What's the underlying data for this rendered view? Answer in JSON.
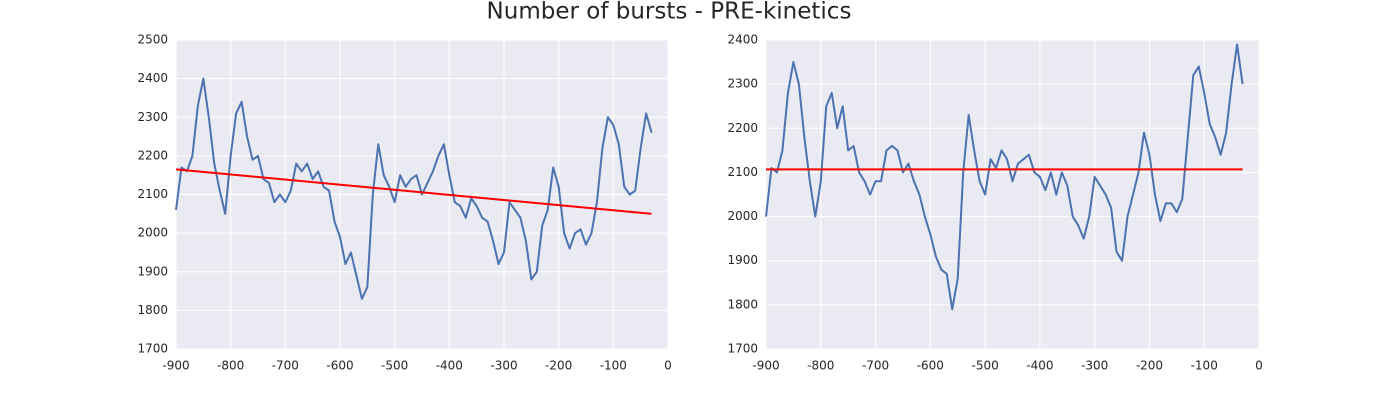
{
  "title": "Number of bursts - PRE-kinetics",
  "chart_data": [
    {
      "type": "line",
      "x": [
        -900,
        -890,
        -880,
        -870,
        -860,
        -850,
        -840,
        -830,
        -820,
        -810,
        -800,
        -790,
        -780,
        -770,
        -760,
        -750,
        -740,
        -730,
        -720,
        -710,
        -700,
        -690,
        -680,
        -670,
        -660,
        -650,
        -640,
        -630,
        -620,
        -610,
        -600,
        -590,
        -580,
        -570,
        -560,
        -550,
        -540,
        -530,
        -520,
        -510,
        -500,
        -490,
        -480,
        -470,
        -460,
        -450,
        -440,
        -430,
        -420,
        -410,
        -400,
        -390,
        -380,
        -370,
        -360,
        -350,
        -340,
        -330,
        -320,
        -310,
        -300,
        -290,
        -280,
        -270,
        -260,
        -250,
        -240,
        -230,
        -220,
        -210,
        -200,
        -190,
        -180,
        -170,
        -160,
        -150,
        -140,
        -130,
        -120,
        -110,
        -100,
        -90,
        -80,
        -70,
        -60,
        -50,
        -40,
        -30
      ],
      "series": [
        {
          "color": "#4c72b0",
          "values": [
            2060,
            2170,
            2160,
            2200,
            2330,
            2400,
            2300,
            2180,
            2110,
            2050,
            2200,
            2310,
            2340,
            2250,
            2190,
            2200,
            2140,
            2130,
            2080,
            2100,
            2080,
            2110,
            2180,
            2160,
            2180,
            2140,
            2160,
            2120,
            2110,
            2030,
            1990,
            1920,
            1950,
            1890,
            1830,
            1860,
            2100,
            2230,
            2150,
            2120,
            2080,
            2150,
            2120,
            2140,
            2150,
            2100,
            2130,
            2160,
            2200,
            2230,
            2150,
            2080,
            2070,
            2040,
            2090,
            2070,
            2040,
            2030,
            1980,
            1920,
            1950,
            2080,
            2060,
            2040,
            1980,
            1880,
            1900,
            2020,
            2060,
            2170,
            2120,
            2000,
            1960,
            2000,
            2010,
            1970,
            2000,
            2080,
            2220,
            2300,
            2280,
            2230,
            2120,
            2100,
            2110,
            2220,
            2310,
            2260
          ]
        },
        {
          "color": "#ff0000",
          "x": [
            -900,
            -30
          ],
          "values": [
            2165,
            2050
          ]
        }
      ],
      "xlim": [
        -900,
        0
      ],
      "xticks": [
        -900,
        -800,
        -700,
        -600,
        -500,
        -400,
        -300,
        -200,
        -100,
        0
      ],
      "ylim": [
        1700,
        2500
      ],
      "yticks": [
        1700,
        1800,
        1900,
        2000,
        2100,
        2200,
        2300,
        2400,
        2500
      ],
      "grid": true
    },
    {
      "type": "line",
      "x": [
        -900,
        -890,
        -880,
        -870,
        -860,
        -850,
        -840,
        -830,
        -820,
        -810,
        -800,
        -790,
        -780,
        -770,
        -760,
        -750,
        -740,
        -730,
        -720,
        -710,
        -700,
        -690,
        -680,
        -670,
        -660,
        -650,
        -640,
        -630,
        -620,
        -610,
        -600,
        -590,
        -580,
        -570,
        -560,
        -550,
        -540,
        -530,
        -520,
        -510,
        -500,
        -490,
        -480,
        -470,
        -460,
        -450,
        -440,
        -430,
        -420,
        -410,
        -400,
        -390,
        -380,
        -370,
        -360,
        -350,
        -340,
        -330,
        -320,
        -310,
        -300,
        -290,
        -280,
        -270,
        -260,
        -250,
        -240,
        -230,
        -220,
        -210,
        -200,
        -190,
        -180,
        -170,
        -160,
        -150,
        -140,
        -130,
        -120,
        -110,
        -100,
        -90,
        -80,
        -70,
        -60,
        -50,
        -40,
        -30
      ],
      "series": [
        {
          "color": "#4c72b0",
          "values": [
            2000,
            2110,
            2100,
            2150,
            2280,
            2350,
            2300,
            2180,
            2080,
            2000,
            2080,
            2250,
            2280,
            2200,
            2250,
            2150,
            2160,
            2100,
            2080,
            2050,
            2080,
            2080,
            2150,
            2160,
            2150,
            2100,
            2120,
            2080,
            2050,
            2000,
            1960,
            1910,
            1880,
            1870,
            1790,
            1860,
            2100,
            2230,
            2150,
            2080,
            2050,
            2130,
            2110,
            2150,
            2130,
            2080,
            2120,
            2130,
            2140,
            2100,
            2090,
            2060,
            2100,
            2050,
            2100,
            2070,
            2000,
            1980,
            1950,
            2000,
            2090,
            2070,
            2050,
            2020,
            1920,
            1900,
            2000,
            2050,
            2100,
            2190,
            2140,
            2050,
            1990,
            2030,
            2030,
            2010,
            2040,
            2180,
            2320,
            2340,
            2280,
            2210,
            2180,
            2140,
            2190,
            2300,
            2390,
            2300
          ]
        },
        {
          "color": "#ff0000",
          "x": [
            -900,
            -30
          ],
          "values": [
            2107,
            2107
          ]
        }
      ],
      "xlim": [
        -900,
        0
      ],
      "xticks": [
        -900,
        -800,
        -700,
        -600,
        -500,
        -400,
        -300,
        -200,
        -100,
        0
      ],
      "ylim": [
        1700,
        2400
      ],
      "yticks": [
        1700,
        1800,
        1900,
        2000,
        2100,
        2200,
        2300,
        2400
      ],
      "grid": true
    }
  ]
}
